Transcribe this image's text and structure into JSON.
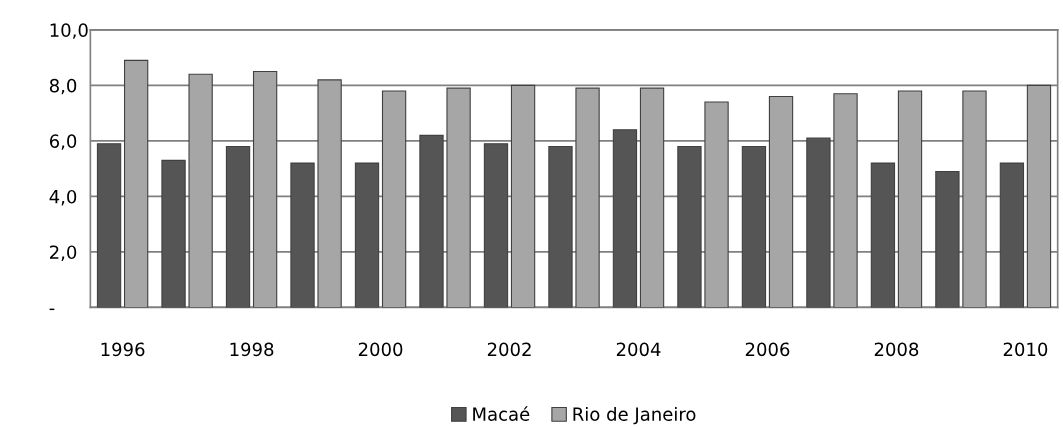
{
  "chart_data": {
    "type": "bar",
    "categories": [
      "1996",
      null,
      "1998",
      null,
      "2000",
      null,
      "2002",
      null,
      "2004",
      null,
      "2006",
      null,
      "2008",
      null,
      "2010"
    ],
    "series": [
      {
        "name": "Macaé",
        "color": "#555555",
        "values": [
          5.9,
          5.3,
          5.8,
          5.2,
          5.2,
          6.2,
          5.9,
          5.8,
          6.4,
          5.8,
          5.8,
          6.1,
          5.2,
          4.9,
          5.2
        ]
      },
      {
        "name": "Rio de Janeiro",
        "color": "#a6a6a6",
        "values": [
          8.9,
          8.4,
          8.5,
          8.2,
          7.8,
          7.9,
          8.0,
          7.9,
          7.9,
          7.4,
          7.6,
          7.7,
          7.8,
          7.8,
          8.0
        ]
      }
    ],
    "ylim": [
      0,
      10
    ],
    "yticks": [
      {
        "value": 0,
        "label": "-"
      },
      {
        "value": 2,
        "label": "2,0"
      },
      {
        "value": 4,
        "label": "4,0"
      },
      {
        "value": 6,
        "label": "6,0"
      },
      {
        "value": 8,
        "label": "8,0"
      },
      {
        "value": 10,
        "label": "10,0"
      }
    ],
    "grid": "y",
    "legend": "bottom"
  }
}
